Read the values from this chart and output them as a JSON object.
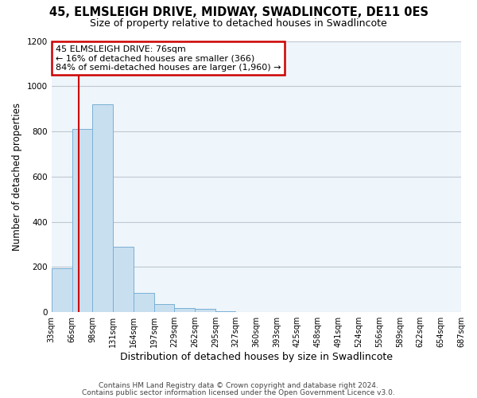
{
  "title_line1": "45, ELMSLEIGH DRIVE, MIDWAY, SWADLINCOTE, DE11 0ES",
  "title_line2": "Size of property relative to detached houses in Swadlincote",
  "xlabel": "Distribution of detached houses by size in Swadlincote",
  "ylabel": "Number of detached properties",
  "footer_line1": "Contains HM Land Registry data © Crown copyright and database right 2024.",
  "footer_line2": "Contains public sector information licensed under the Open Government Licence v3.0.",
  "bin_edges": [
    33,
    66,
    98,
    131,
    164,
    197,
    229,
    262,
    295,
    327,
    360,
    393,
    425,
    458,
    491,
    524,
    556,
    589,
    622,
    654,
    687
  ],
  "bar_heights": [
    195,
    810,
    920,
    290,
    85,
    35,
    20,
    15,
    5,
    0,
    0,
    0,
    0,
    0,
    0,
    0,
    0,
    0,
    0,
    0
  ],
  "bar_color": "#c8dff0",
  "bar_edge_color": "#7ab0d4",
  "property_size": 76,
  "annotation_title": "45 ELMSLEIGH DRIVE: 76sqm",
  "annotation_line2": "← 16% of detached houses are smaller (366)",
  "annotation_line3": "84% of semi-detached houses are larger (1,960) →",
  "annotation_box_color": "#cc0000",
  "vline_color": "#cc0000",
  "ylim": [
    0,
    1200
  ],
  "yticks": [
    0,
    200,
    400,
    600,
    800,
    1000,
    1200
  ],
  "plot_bg_color": "#eef5fb",
  "fig_bg_color": "#ffffff",
  "grid_color": "#c0c8d0",
  "title1_fontsize": 10.5,
  "title2_fontsize": 9.0,
  "ylabel_fontsize": 8.5,
  "xlabel_fontsize": 9.0,
  "tick_fontsize": 7.0,
  "footer_fontsize": 6.5,
  "ann_fontsize": 8.0
}
